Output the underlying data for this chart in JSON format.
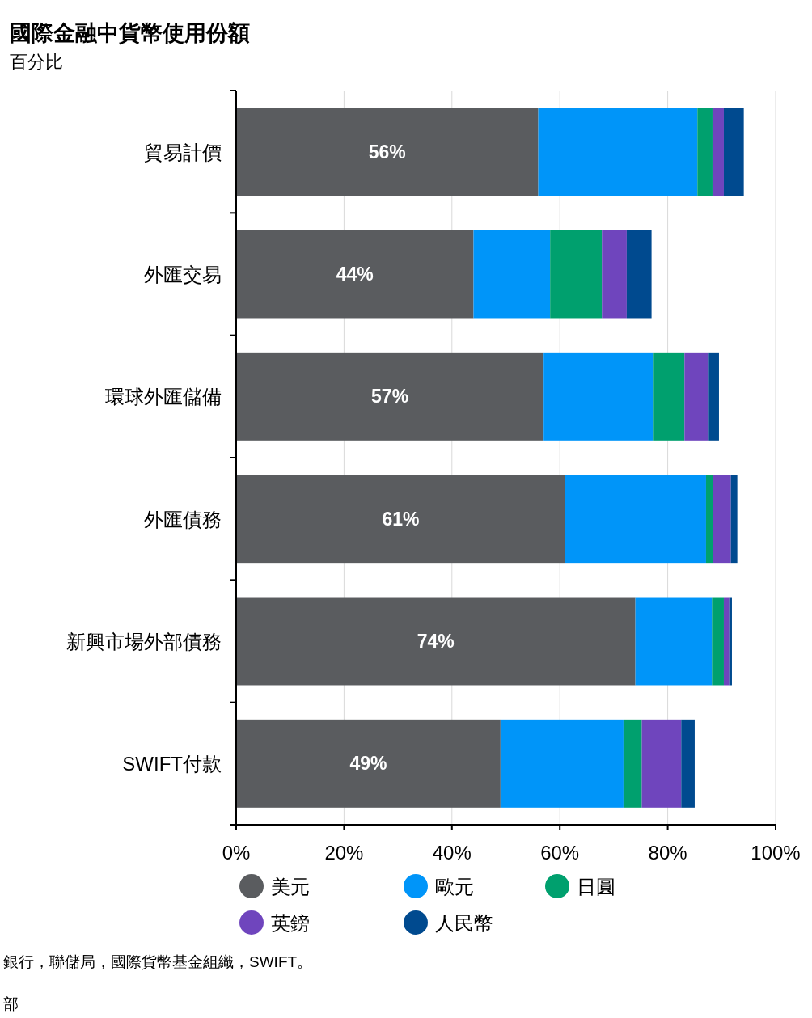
{
  "chart_data": {
    "type": "bar",
    "orientation": "horizontal",
    "stacked": true,
    "title": "國際金融中貨幣使用份額",
    "subtitle": "百分比",
    "categories": [
      "貿易計價",
      "外匯交易",
      "環球外匯儲備",
      "外匯債務",
      "新興市場外部債務",
      "SWIFT付款"
    ],
    "series": [
      {
        "name": "美元",
        "color": "#5a5c5f",
        "values": [
          56,
          44,
          57,
          61,
          74,
          49
        ],
        "value_labels": [
          "56%",
          "44%",
          "57%",
          "61%",
          "74%",
          "49%"
        ]
      },
      {
        "name": "歐元",
        "color": "#0095f9",
        "values": [
          29.5,
          14.2,
          20.4,
          26.1,
          14.2,
          22.8
        ]
      },
      {
        "name": "日圓",
        "color": "#00a06e",
        "values": [
          2.8,
          9.6,
          5.7,
          1.3,
          2.2,
          3.4
        ]
      },
      {
        "name": "英鎊",
        "color": "#6f45bd",
        "values": [
          2.1,
          4.6,
          4.5,
          3.3,
          1.0,
          7.3
        ]
      },
      {
        "name": "人民幣",
        "color": "#004a8f",
        "values": [
          3.7,
          4.6,
          1.9,
          1.2,
          0.5,
          2.5
        ]
      }
    ],
    "xlim": [
      0,
      100
    ],
    "xticks": [
      {
        "value": 0,
        "label": "0%"
      },
      {
        "value": 20,
        "label": "20%"
      },
      {
        "value": 40,
        "label": "40%"
      },
      {
        "value": 60,
        "label": "60%"
      },
      {
        "value": 80,
        "label": "80%"
      },
      {
        "value": 100,
        "label": "100%"
      }
    ],
    "grid": "x",
    "legend": "bottom",
    "annotations": [
      "銀行，聯儲局，國際貨幣基金組織，SWIFT。",
      "部"
    ]
  }
}
